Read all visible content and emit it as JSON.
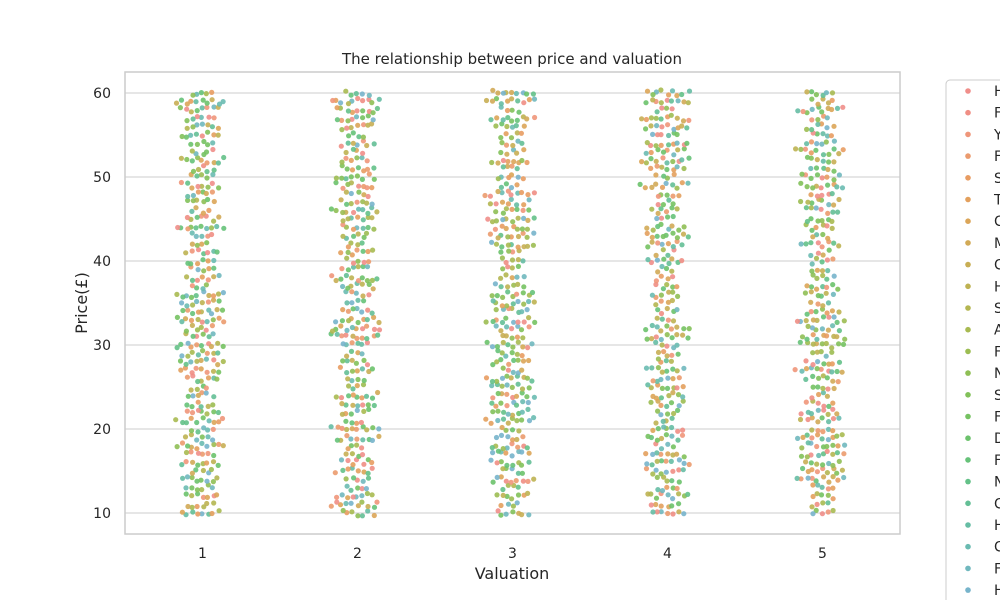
{
  "chart_data": {
    "type": "scatter",
    "subtype": "swarm",
    "title": "The relationship between price and valuation",
    "xlabel": "Valuation",
    "ylabel": "Price(£)",
    "categories": [
      "1",
      "2",
      "3",
      "4",
      "5"
    ],
    "ylim": [
      7.5,
      62.5
    ],
    "yticks": [
      10,
      20,
      30,
      40,
      50,
      60
    ],
    "grid": true,
    "legend": {
      "placement": "right",
      "entries": [
        "H",
        "F",
        "Y",
        "F",
        "S",
        "T",
        "C",
        "M",
        "C",
        "H",
        "S",
        "A",
        "F",
        "N",
        "S",
        "F",
        "D",
        "F",
        "N",
        "C",
        "H",
        "C",
        "F",
        "H"
      ]
    },
    "palette": [
      "#f08e8a",
      "#f08e84",
      "#ef967a",
      "#eb9b6e",
      "#e89c62",
      "#e3a05d",
      "#dba558",
      "#d2aa56",
      "#c8ae54",
      "#beb252",
      "#b4b651",
      "#a8ba51",
      "#9cbd52",
      "#8fbf55",
      "#82c15a",
      "#76c262",
      "#6cc26c",
      "#66c279",
      "#64c188",
      "#64bf96",
      "#66bda4",
      "#6abbb1",
      "#70b8be",
      "#77b4cb"
    ],
    "y_range_per_category": [
      [
        10,
        60
      ],
      [
        10,
        60
      ],
      [
        10,
        60
      ],
      [
        10,
        60
      ],
      [
        10,
        60
      ]
    ]
  }
}
